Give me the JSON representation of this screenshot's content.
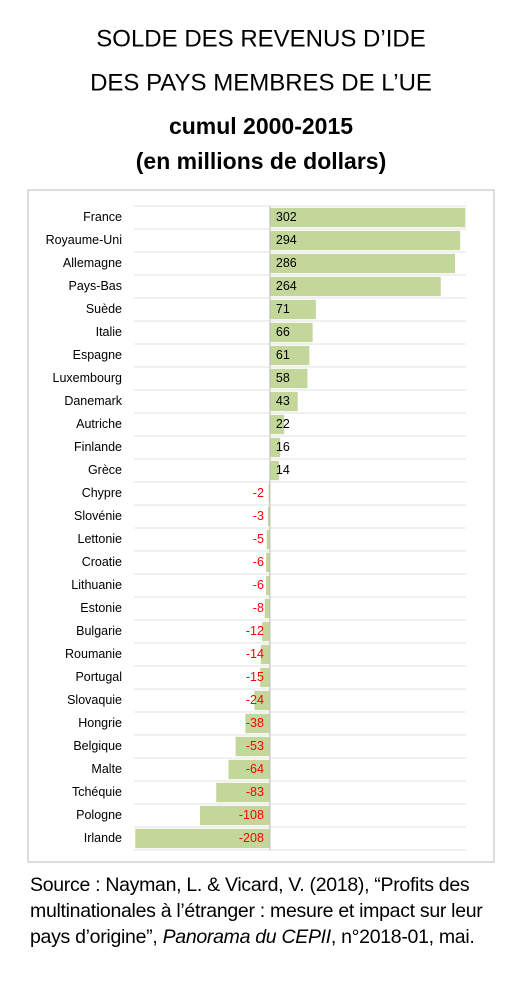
{
  "chart_data": {
    "type": "bar",
    "orientation": "horizontal",
    "title_lines": [
      "SOLDE DES REVENUS D’IDE",
      "DES PAYS MEMBRES DE L’UE",
      "cumul 2000-2015",
      "(en millions de dollars)"
    ],
    "categories": [
      "France",
      "Royaume-Uni",
      "Allemagne",
      "Pays-Bas",
      "Suède",
      "Italie",
      "Espagne",
      "Luxembourg",
      "Danemark",
      "Autriche",
      "Finlande",
      "Grèce",
      "Chypre",
      "Slovénie",
      "Lettonie",
      "Croatie",
      "Lithuanie",
      "Estonie",
      "Bulgarie",
      "Roumanie",
      "Portugal",
      "Slovaquie",
      "Hongrie",
      "Belgique",
      "Malte",
      "Tchéquie",
      "Pologne",
      "Irlande"
    ],
    "values": [
      302,
      294,
      286,
      264,
      71,
      66,
      61,
      58,
      43,
      22,
      16,
      14,
      -2,
      -3,
      -5,
      -6,
      -6,
      -8,
      -12,
      -14,
      -15,
      -24,
      -38,
      -53,
      -64,
      -83,
      -108,
      -208
    ],
    "color": "#c4d79b",
    "negative_label_color": "#ff0000",
    "xlim": [
      -210,
      303
    ],
    "grid": true
  },
  "source": {
    "before": "Source : Nayman, L. & Vicard, V. (2018), “Profits des multinationales à l’étranger : mesure et impact sur leur pays d’origine”, ",
    "italic": "Panorama du CEPII",
    "after": ", n°2018-01, mai."
  }
}
